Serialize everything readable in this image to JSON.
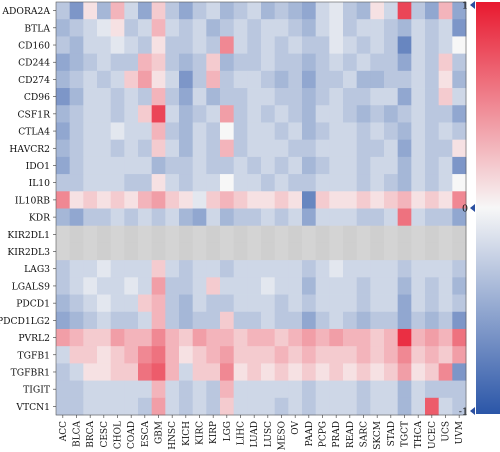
{
  "chart_data": {
    "type": "heatmap",
    "rows": [
      "ADORA2A",
      "BTLA",
      "CD160",
      "CD244",
      "CD274",
      "CD96",
      "CSF1R",
      "CTLA4",
      "HAVCR2",
      "IDO1",
      "IL10",
      "IL10RB",
      "KDR",
      "KIR2DL1",
      "KIR2DL3",
      "LAG3",
      "LGALS9",
      "PDCD1",
      "PDCD1LG2",
      "PVRL2",
      "TGFB1",
      "TGFBR1",
      "TIGIT",
      "VTCN1"
    ],
    "columns": [
      "ACC",
      "BLCA",
      "BRCA",
      "CESC",
      "CHOL",
      "COAD",
      "ESCA",
      "GBM",
      "HNSC",
      "KICH",
      "KIRC",
      "KIRP",
      "LGG",
      "LIHC",
      "LUAD",
      "LUSC",
      "MESO",
      "OV",
      "PAAD",
      "PCPG",
      "PRAD",
      "READ",
      "SARC",
      "SKCM",
      "STAD",
      "TGCT",
      "THCA",
      "UCEC",
      "UCS",
      "UVM"
    ],
    "values": [
      [
        -0.3,
        -0.6,
        0.1,
        -0.4,
        0.3,
        -0.2,
        -0.5,
        0.2,
        -0.3,
        -0.5,
        -0.3,
        -0.2,
        -0.4,
        -0.3,
        -0.2,
        -0.4,
        -0.3,
        -0.4,
        -0.5,
        -0.2,
        -0.1,
        -0.3,
        -0.4,
        0.1,
        -0.2,
        0.8,
        -0.3,
        -0.5,
        0.3,
        -0.5
      ],
      [
        -0.4,
        -0.3,
        -0.2,
        -0.1,
        0.1,
        -0.3,
        -0.2,
        0.3,
        -0.2,
        -0.3,
        -0.2,
        -0.4,
        -0.3,
        -0.2,
        -0.3,
        -0.2,
        -0.2,
        -0.3,
        -0.4,
        -0.2,
        -0.1,
        -0.3,
        -0.2,
        -0.2,
        -0.3,
        -0.4,
        -0.2,
        -0.3,
        -0.2,
        -0.6
      ],
      [
        -0.3,
        -0.4,
        -0.2,
        -0.2,
        -0.1,
        -0.2,
        -0.3,
        0.1,
        -0.3,
        -0.3,
        -0.2,
        -0.3,
        0.5,
        -0.2,
        -0.3,
        -0.2,
        -0.3,
        -0.2,
        -0.3,
        -0.3,
        -0.1,
        -0.2,
        -0.3,
        -0.2,
        -0.3,
        -0.7,
        -0.2,
        -0.3,
        -0.2,
        0.0
      ],
      [
        -0.5,
        -0.4,
        -0.3,
        -0.2,
        -0.3,
        -0.3,
        0.3,
        0.2,
        -0.3,
        -0.4,
        -0.3,
        0.2,
        -0.4,
        -0.3,
        -0.3,
        -0.2,
        -0.3,
        -0.3,
        -0.4,
        -0.3,
        -0.2,
        -0.3,
        -0.2,
        -0.3,
        -0.3,
        -0.5,
        -0.2,
        -0.3,
        0.2,
        -0.3
      ],
      [
        -0.4,
        -0.3,
        -0.2,
        -0.3,
        -0.2,
        0.2,
        0.4,
        0.1,
        -0.2,
        -0.6,
        -0.3,
        0.3,
        -0.3,
        -0.2,
        -0.2,
        -0.3,
        -0.4,
        -0.3,
        -0.5,
        -0.3,
        -0.3,
        -0.2,
        -0.4,
        -0.4,
        -0.3,
        -0.3,
        -0.2,
        -0.3,
        0.1,
        -0.4
      ],
      [
        -0.6,
        -0.4,
        -0.2,
        -0.2,
        -0.3,
        -0.2,
        -0.3,
        0.3,
        -0.3,
        -0.5,
        -0.2,
        -0.4,
        -0.3,
        -0.3,
        -0.2,
        -0.2,
        -0.3,
        -0.3,
        -0.4,
        -0.3,
        -0.2,
        -0.3,
        -0.3,
        -0.2,
        -0.2,
        -0.5,
        -0.2,
        -0.3,
        0.2,
        -0.2
      ],
      [
        -0.4,
        -0.3,
        -0.2,
        -0.2,
        -0.3,
        -0.2,
        0.2,
        0.8,
        -0.2,
        -0.4,
        -0.3,
        -0.2,
        0.4,
        -0.3,
        -0.2,
        -0.3,
        -0.2,
        -0.3,
        -0.4,
        -0.2,
        -0.2,
        -0.3,
        -0.4,
        -0.3,
        -0.4,
        -0.3,
        -0.2,
        -0.3,
        -0.3,
        -0.5
      ],
      [
        -0.5,
        -0.3,
        -0.2,
        -0.2,
        -0.1,
        -0.2,
        -0.2,
        0.3,
        -0.3,
        -0.4,
        -0.2,
        -0.3,
        0.0,
        -0.3,
        -0.2,
        -0.2,
        -0.3,
        -0.2,
        -0.4,
        -0.3,
        -0.2,
        -0.2,
        -0.3,
        -0.2,
        -0.3,
        -0.4,
        -0.2,
        -0.3,
        -0.2,
        -0.3
      ],
      [
        -0.4,
        -0.3,
        -0.2,
        -0.2,
        -0.3,
        -0.2,
        -0.3,
        0.2,
        -0.2,
        -0.4,
        -0.2,
        -0.3,
        0.3,
        -0.3,
        -0.2,
        -0.2,
        -0.2,
        -0.3,
        -0.3,
        -0.2,
        -0.2,
        -0.2,
        -0.3,
        -0.3,
        -0.2,
        -0.5,
        -0.2,
        -0.3,
        -0.3,
        0.1
      ],
      [
        -0.5,
        -0.3,
        -0.2,
        -0.2,
        -0.2,
        -0.2,
        -0.2,
        -0.4,
        -0.3,
        -0.3,
        -0.2,
        -0.3,
        -0.3,
        -0.2,
        -0.3,
        -0.2,
        -0.3,
        -0.2,
        -0.4,
        -0.3,
        -0.2,
        -0.2,
        -0.3,
        -0.2,
        -0.2,
        -0.4,
        -0.2,
        -0.3,
        -0.2,
        -0.6
      ],
      [
        -0.3,
        -0.3,
        -0.2,
        -0.2,
        -0.2,
        -0.3,
        -0.3,
        0.1,
        -0.2,
        -0.3,
        -0.2,
        -0.2,
        0.0,
        -0.2,
        -0.2,
        -0.3,
        -0.2,
        -0.3,
        -0.3,
        -0.2,
        -0.2,
        -0.2,
        -0.3,
        -0.2,
        -0.3,
        -0.4,
        -0.2,
        -0.3,
        -0.2,
        0.0
      ],
      [
        0.5,
        0.1,
        0.2,
        0.1,
        0.2,
        0.1,
        0.3,
        0.4,
        0.2,
        0.1,
        -0.1,
        0.2,
        0.3,
        0.2,
        0.1,
        0.1,
        0.2,
        0.1,
        -0.7,
        0.2,
        0.1,
        0.1,
        0.2,
        0.1,
        0.2,
        0.3,
        0.1,
        0.2,
        0.1,
        0.5
      ],
      [
        -0.4,
        -0.5,
        -0.3,
        -0.3,
        -0.2,
        -0.3,
        -0.2,
        -0.3,
        -0.2,
        -0.4,
        -0.5,
        -0.2,
        -0.4,
        -0.3,
        -0.3,
        -0.2,
        -0.3,
        -0.2,
        -0.5,
        -0.2,
        -0.2,
        -0.2,
        -0.3,
        -0.3,
        -0.2,
        0.6,
        -0.2,
        -0.3,
        -0.3,
        -0.5
      ],
      [
        0.0,
        0.0,
        0.0,
        0.0,
        0.0,
        0.0,
        0.0,
        0.0,
        0.0,
        0.0,
        0.0,
        0.0,
        0.0,
        0.0,
        0.0,
        0.0,
        0.0,
        0.0,
        0.0,
        0.0,
        0.0,
        0.0,
        0.0,
        0.0,
        0.0,
        0.0,
        0.0,
        0.0,
        0.0,
        0.0
      ],
      [
        0.0,
        0.0,
        0.0,
        0.0,
        0.0,
        0.0,
        0.0,
        0.0,
        0.0,
        0.0,
        0.0,
        0.0,
        0.0,
        0.0,
        0.0,
        0.0,
        0.0,
        0.0,
        0.0,
        0.0,
        0.0,
        0.0,
        0.0,
        0.0,
        0.0,
        0.0,
        0.0,
        0.0,
        0.0,
        0.0
      ],
      [
        -0.3,
        -0.2,
        -0.2,
        -0.1,
        -0.2,
        -0.2,
        -0.2,
        0.2,
        -0.2,
        -0.3,
        -0.2,
        -0.2,
        -0.3,
        -0.2,
        -0.2,
        -0.2,
        -0.2,
        -0.2,
        -0.3,
        -0.2,
        -0.1,
        -0.2,
        -0.2,
        -0.2,
        -0.2,
        -0.3,
        -0.2,
        -0.2,
        -0.2,
        -0.3
      ],
      [
        -0.3,
        -0.2,
        -0.1,
        -0.2,
        -0.2,
        -0.1,
        -0.2,
        0.4,
        -0.3,
        -0.3,
        -0.2,
        0.2,
        -0.2,
        -0.2,
        -0.2,
        -0.1,
        -0.2,
        -0.2,
        -0.4,
        -0.2,
        -0.2,
        -0.2,
        -0.3,
        -0.2,
        -0.2,
        -0.4,
        -0.2,
        -0.3,
        -0.2,
        -0.4
      ],
      [
        -0.4,
        -0.3,
        -0.2,
        -0.1,
        -0.2,
        -0.2,
        0.2,
        0.3,
        -0.3,
        -0.4,
        -0.2,
        -0.3,
        -0.3,
        -0.2,
        -0.2,
        -0.2,
        -0.3,
        -0.2,
        -0.3,
        -0.2,
        -0.2,
        -0.2,
        -0.3,
        -0.2,
        -0.2,
        -0.5,
        -0.2,
        -0.3,
        -0.2,
        -0.3
      ],
      [
        -0.5,
        -0.4,
        -0.3,
        -0.2,
        -0.3,
        -0.3,
        -0.2,
        0.3,
        -0.3,
        -0.4,
        -0.3,
        -0.3,
        0.2,
        -0.3,
        -0.3,
        -0.2,
        -0.3,
        -0.3,
        -0.5,
        -0.3,
        -0.2,
        -0.3,
        -0.4,
        -0.3,
        -0.3,
        -0.5,
        -0.3,
        -0.4,
        -0.3,
        -0.6
      ],
      [
        0.4,
        0.3,
        0.2,
        0.2,
        0.4,
        0.3,
        0.3,
        0.5,
        0.3,
        0.2,
        0.4,
        0.3,
        0.3,
        0.2,
        0.3,
        0.3,
        0.2,
        0.3,
        0.4,
        0.3,
        0.4,
        0.3,
        0.3,
        0.2,
        0.3,
        0.9,
        0.3,
        0.4,
        0.3,
        0.6
      ],
      [
        -0.2,
        0.2,
        0.2,
        0.1,
        0.2,
        0.3,
        0.5,
        0.6,
        0.3,
        0.1,
        0.2,
        0.3,
        0.4,
        0.2,
        0.2,
        0.2,
        0.3,
        0.2,
        0.3,
        0.2,
        0.2,
        0.2,
        0.3,
        0.2,
        0.3,
        0.5,
        0.2,
        0.3,
        0.2,
        0.4
      ],
      [
        -0.3,
        -0.2,
        0.1,
        0.1,
        0.2,
        0.2,
        0.6,
        0.7,
        0.3,
        -0.2,
        0.2,
        0.2,
        0.5,
        0.1,
        0.2,
        0.1,
        0.2,
        0.1,
        0.2,
        0.1,
        0.2,
        0.1,
        0.2,
        0.1,
        0.2,
        0.4,
        0.1,
        0.2,
        0.5,
        -0.6
      ],
      [
        -0.3,
        -0.3,
        -0.2,
        -0.2,
        -0.2,
        -0.2,
        -0.2,
        0.3,
        -0.2,
        -0.3,
        -0.2,
        -0.3,
        0.3,
        -0.2,
        -0.2,
        -0.2,
        -0.2,
        -0.2,
        -0.3,
        -0.2,
        -0.2,
        -0.2,
        -0.3,
        -0.2,
        -0.2,
        -0.4,
        -0.2,
        -0.3,
        -0.3,
        -0.3
      ],
      [
        -0.3,
        -0.3,
        -0.2,
        -0.2,
        -0.2,
        -0.2,
        -0.3,
        0.4,
        -0.2,
        -0.3,
        -0.2,
        -0.3,
        0.2,
        -0.2,
        -0.2,
        -0.2,
        -0.3,
        -0.2,
        -0.3,
        -0.2,
        -0.2,
        -0.2,
        -0.3,
        -0.2,
        -0.2,
        -0.4,
        -0.2,
        0.7,
        -0.2,
        -0.3
      ]
    ],
    "na_rows": [
      "KIR2DL1",
      "KIR2DL3"
    ],
    "colorbar": {
      "min": -1,
      "mid": 0,
      "max": 1,
      "ticks": [
        "1",
        "0",
        "-1"
      ],
      "low_color": "#2b56a8",
      "mid_color": "#f7f7f7",
      "high_color": "#e8192f",
      "na_color": "#d4d4d4"
    }
  }
}
